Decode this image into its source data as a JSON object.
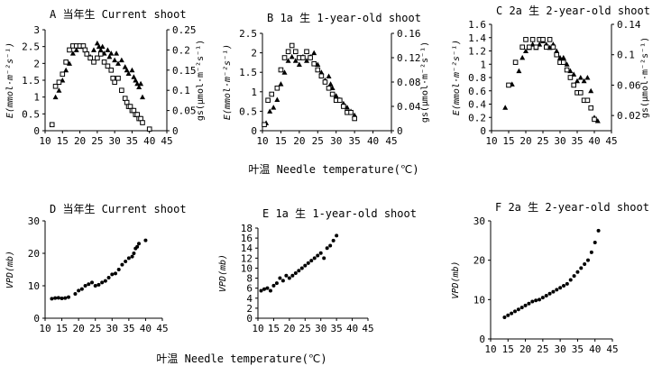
{
  "figure": {
    "xlabel_top": "叶温 Needle temperature(℃)",
    "xlabel_bottom": "叶温 Needle temperature(℃)"
  },
  "chart_data": [
    {
      "id": "A",
      "type": "scatter",
      "title": "A 当年生 Current shoot",
      "xlim": [
        10,
        45
      ],
      "xticks": [
        10,
        15,
        20,
        25,
        30,
        35,
        40,
        45
      ],
      "ylim": [
        0,
        3
      ],
      "yticks": [
        0,
        0.5,
        1,
        1.5,
        2,
        2.5,
        3
      ],
      "ytick_labels": [
        "0",
        "0.5",
        "1",
        "1.5",
        "2",
        "2.5",
        "3"
      ],
      "y2lim": [
        0,
        0.25
      ],
      "y2ticks": [
        0,
        0.05,
        0.1,
        0.15,
        0.2,
        0.25
      ],
      "y2tick_labels": [
        "0",
        "0.05",
        "0.1",
        "0.15",
        "0.2",
        "0.25"
      ],
      "ylabel": "E(mmol·m⁻²s⁻¹)",
      "y2label": "gs(μmol·m⁻²s⁻¹)",
      "series": [
        {
          "name": "E",
          "marker": "triangle",
          "axis": "left",
          "x": [
            13,
            14,
            15,
            16,
            17,
            18,
            19,
            20,
            21,
            22,
            23,
            24,
            25,
            25.5,
            26,
            26.5,
            27,
            28,
            28.5,
            29,
            30,
            30.5,
            31,
            32,
            33,
            33.5,
            34,
            35,
            35.5,
            36,
            36.5,
            37,
            37.5,
            38
          ],
          "y": [
            1.0,
            1.2,
            1.5,
            1.8,
            2.0,
            2.3,
            2.4,
            2.5,
            2.5,
            2.3,
            2.2,
            2.4,
            2.6,
            2.5,
            2.4,
            2.5,
            2.3,
            2.4,
            2.2,
            2.3,
            2.1,
            2.3,
            2.0,
            2.1,
            1.9,
            1.8,
            1.7,
            1.8,
            1.6,
            1.5,
            1.4,
            1.3,
            1.4,
            1.0
          ]
        },
        {
          "name": "gs",
          "marker": "square",
          "axis": "right",
          "x": [
            12,
            13,
            14,
            15,
            16,
            17,
            18,
            19,
            20,
            21,
            21.5,
            22,
            23,
            24,
            25,
            26,
            27,
            28,
            29,
            29.5,
            30,
            31,
            32,
            33,
            33.5,
            34,
            34.5,
            35,
            35.5,
            36,
            36.5,
            37,
            37.5,
            38,
            40
          ],
          "y": [
            0.015,
            0.11,
            0.12,
            0.14,
            0.17,
            0.2,
            0.21,
            0.21,
            0.21,
            0.21,
            0.2,
            0.19,
            0.18,
            0.17,
            0.18,
            0.19,
            0.17,
            0.16,
            0.15,
            0.13,
            0.12,
            0.13,
            0.1,
            0.08,
            0.07,
            0.06,
            0.06,
            0.05,
            0.05,
            0.04,
            0.04,
            0.03,
            0.03,
            0.02,
            0.004
          ]
        }
      ]
    },
    {
      "id": "B",
      "type": "scatter",
      "title": "B 1a 生 1-year-old shoot",
      "xlim": [
        10,
        45
      ],
      "xticks": [
        10,
        15,
        20,
        25,
        30,
        35,
        40,
        45
      ],
      "ylim": [
        0,
        2.5
      ],
      "yticks": [
        0,
        0.5,
        1,
        1.5,
        2,
        2.5
      ],
      "ytick_labels": [
        "0",
        "0.5",
        "1",
        "1.5",
        "2",
        "2.5"
      ],
      "y2lim": [
        0,
        0.16
      ],
      "y2ticks": [
        0,
        0.04,
        0.08,
        0.12,
        0.16
      ],
      "y2tick_labels": [
        "0",
        "0.04",
        "0.08",
        "0.12",
        "0.16"
      ],
      "ylabel": "E(mmol·m⁻²s⁻¹)",
      "y2label": "gs(μmol·m⁻²s⁻¹)",
      "series": [
        {
          "name": "E",
          "marker": "triangle",
          "axis": "left",
          "x": [
            11,
            12,
            13,
            14,
            15,
            16,
            17,
            18,
            19,
            20,
            21,
            22,
            23,
            24,
            25,
            26,
            27,
            28,
            28.5,
            29,
            30,
            31,
            32,
            33,
            34,
            35
          ],
          "y": [
            0.2,
            0.5,
            0.6,
            0.8,
            1.2,
            1.5,
            1.8,
            1.9,
            1.8,
            1.7,
            1.9,
            1.8,
            1.9,
            2.0,
            1.7,
            1.5,
            1.3,
            1.4,
            1.2,
            1.1,
            0.9,
            0.8,
            0.7,
            0.6,
            0.5,
            0.4
          ]
        },
        {
          "name": "gs",
          "marker": "square",
          "axis": "right",
          "x": [
            10.5,
            11.5,
            12.5,
            14,
            15,
            16,
            17,
            18,
            19,
            20,
            21,
            22,
            23,
            24,
            25,
            26,
            27,
            28,
            29,
            30,
            31,
            32,
            33,
            34,
            35
          ],
          "y": [
            0.01,
            0.05,
            0.06,
            0.07,
            0.1,
            0.12,
            0.13,
            0.14,
            0.13,
            0.12,
            0.12,
            0.13,
            0.12,
            0.11,
            0.1,
            0.09,
            0.08,
            0.07,
            0.06,
            0.05,
            0.05,
            0.04,
            0.03,
            0.03,
            0.02
          ]
        }
      ]
    },
    {
      "id": "C",
      "type": "scatter",
      "title": "C  2a 生 2-year-old shoot",
      "xlim": [
        10,
        45
      ],
      "xticks": [
        10,
        15,
        20,
        25,
        30,
        35,
        40,
        45
      ],
      "ylim": [
        0,
        1.6
      ],
      "yticks": [
        0,
        0.2,
        0.4,
        0.6,
        0.8,
        1,
        1.2,
        1.4,
        1.6
      ],
      "ytick_labels": [
        "0",
        "0.2",
        "0.4",
        "0.6",
        "0.8",
        "1",
        "1.2",
        "1.4",
        "1.6"
      ],
      "y2lim": [
        0,
        0.14
      ],
      "y2ticks": [
        0.02,
        0.06,
        0.1,
        0.14
      ],
      "y2tick_labels": [
        "0.02",
        "0.06",
        "0.1",
        "0.14"
      ],
      "ylabel": "E(mmol·m⁻²s⁻¹)",
      "y2label": "gs(μmol·m⁻²s⁻¹)",
      "series": [
        {
          "name": "E",
          "marker": "triangle",
          "axis": "left",
          "x": [
            14,
            16,
            18,
            19,
            20,
            21,
            22,
            23,
            24,
            25,
            26,
            27,
            28,
            29,
            30,
            31,
            32,
            33,
            34,
            35,
            36,
            37,
            38,
            39,
            40,
            41
          ],
          "y": [
            0.35,
            0.7,
            0.9,
            1.1,
            1.2,
            1.25,
            1.3,
            1.25,
            1.3,
            1.35,
            1.3,
            1.25,
            1.3,
            1.2,
            1.1,
            1.1,
            1.0,
            0.9,
            0.85,
            0.75,
            0.8,
            0.75,
            0.8,
            0.6,
            0.2,
            0.15
          ]
        },
        {
          "name": "gs",
          "marker": "square",
          "axis": "right",
          "x": [
            15,
            17,
            19,
            20,
            21,
            22,
            23,
            24,
            25,
            26,
            27,
            28,
            29,
            30,
            31,
            32,
            33,
            34,
            35,
            36,
            37,
            38,
            39,
            40
          ],
          "y": [
            0.06,
            0.09,
            0.11,
            0.12,
            0.11,
            0.12,
            0.11,
            0.12,
            0.12,
            0.11,
            0.12,
            0.11,
            0.1,
            0.09,
            0.09,
            0.08,
            0.07,
            0.06,
            0.05,
            0.05,
            0.04,
            0.04,
            0.03,
            0.015
          ]
        }
      ]
    },
    {
      "id": "D",
      "type": "scatter",
      "title": "D 当年生 Current shoot",
      "xlim": [
        10,
        45
      ],
      "xticks": [
        10,
        15,
        20,
        25,
        30,
        35,
        40,
        45
      ],
      "ylim": [
        0,
        30
      ],
      "yticks": [
        0,
        10,
        20,
        30
      ],
      "ytick_labels": [
        "0",
        "10",
        "20",
        "30"
      ],
      "ylabel": "VPD(mb)",
      "series": [
        {
          "name": "VPD",
          "marker": "dot",
          "axis": "left",
          "x": [
            12,
            13,
            14,
            15,
            16,
            17,
            19,
            20,
            21,
            22,
            23,
            24,
            25,
            26,
            27,
            28,
            29,
            30,
            31,
            32,
            33,
            34,
            35,
            36,
            36.5,
            37,
            37.5,
            38,
            40
          ],
          "y": [
            6,
            6.2,
            6.3,
            6.1,
            6.2,
            6.5,
            7.5,
            8.5,
            9,
            10,
            10.5,
            11,
            10,
            10.3,
            11,
            11.5,
            12.5,
            13.5,
            13.8,
            15,
            16.5,
            17.5,
            18.5,
            19,
            20,
            21.5,
            22,
            23,
            24
          ]
        }
      ]
    },
    {
      "id": "E",
      "type": "scatter",
      "title": "E   1a 生 1-year-old shoot",
      "xlim": [
        10,
        45
      ],
      "xticks": [
        10,
        15,
        20,
        25,
        30,
        35,
        40,
        45
      ],
      "ylim": [
        0,
        18
      ],
      "yticks": [
        0,
        2,
        4,
        6,
        8,
        10,
        12,
        14,
        16,
        18
      ],
      "ytick_labels": [
        "0",
        "2",
        "4",
        "6",
        "8",
        "10",
        "12",
        "14",
        "16",
        "18"
      ],
      "ylabel": "VPD(mb)",
      "series": [
        {
          "name": "VPD",
          "marker": "dot",
          "axis": "left",
          "x": [
            11,
            12,
            13,
            14,
            15,
            16,
            17,
            18,
            19,
            20,
            21,
            22,
            23,
            24,
            25,
            26,
            27,
            28,
            29,
            30,
            31,
            32,
            33,
            34,
            35
          ],
          "y": [
            5.5,
            5.8,
            6,
            5.5,
            6.5,
            7,
            8,
            7.5,
            8.5,
            8,
            8.5,
            9,
            9.5,
            10,
            10.5,
            11,
            11.5,
            12,
            12.5,
            13,
            12,
            14,
            14.5,
            15.5,
            16.5
          ]
        }
      ]
    },
    {
      "id": "F",
      "type": "scatter",
      "title": "F  2a 生 2-year-old shoot",
      "xlim": [
        10,
        45
      ],
      "xticks": [
        10,
        15,
        20,
        25,
        30,
        35,
        40,
        45
      ],
      "ylim": [
        0,
        30
      ],
      "yticks": [
        0,
        10,
        20,
        30
      ],
      "ytick_labels": [
        "0",
        "10",
        "20",
        "30"
      ],
      "ylabel": "VPD(mb)",
      "series": [
        {
          "name": "VPD",
          "marker": "dot",
          "axis": "left",
          "x": [
            14,
            15,
            16,
            17,
            18,
            19,
            20,
            21,
            22,
            23,
            24,
            25,
            26,
            27,
            28,
            29,
            30,
            31,
            32,
            33,
            34,
            35,
            36,
            37,
            38,
            39,
            40,
            41
          ],
          "y": [
            5.5,
            6,
            6.5,
            7,
            7.5,
            8,
            8.5,
            9,
            9.5,
            9.8,
            10,
            10.5,
            11,
            11.5,
            12,
            12.5,
            13,
            13.5,
            14,
            15,
            16,
            17,
            18,
            19,
            20,
            22,
            24.5,
            27.5
          ]
        }
      ]
    }
  ]
}
